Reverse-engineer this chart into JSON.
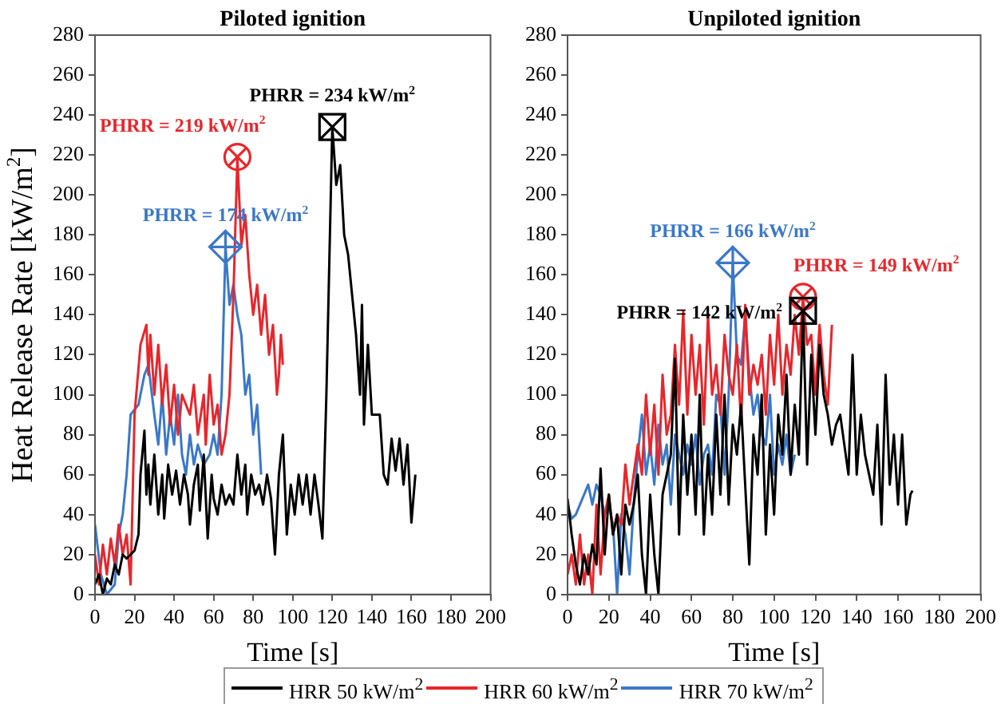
{
  "chart_data": [
    {
      "type": "line",
      "title": "Piloted ignition",
      "xlabel": "Time [s]",
      "ylabel": "Heat Release Rate [kW/m$^{2}$]",
      "xlim": [
        0,
        200
      ],
      "xticks": [
        0,
        20,
        40,
        60,
        80,
        100,
        120,
        140,
        160,
        180,
        200
      ],
      "ylim": [
        0,
        280
      ],
      "yticks": [
        0,
        20,
        40,
        60,
        80,
        100,
        120,
        140,
        160,
        180,
        200,
        220,
        240,
        260,
        280
      ],
      "grid": false,
      "legend": "bottom",
      "marker": "none",
      "series": [
        {
          "name": "HRR 50 kW/m$^{2}$",
          "color": "#000000",
          "x": [
            0,
            2,
            4,
            6,
            8,
            10,
            12,
            14,
            16,
            18,
            20,
            22,
            23,
            25,
            26,
            27,
            28,
            30,
            32,
            34,
            35,
            37,
            39,
            41,
            43,
            45,
            47,
            48,
            50,
            52,
            53,
            55,
            57,
            59,
            60,
            62,
            64,
            66,
            68,
            70,
            72,
            74,
            76,
            77,
            79,
            81,
            83,
            85,
            87,
            89,
            91,
            93,
            95,
            97,
            99,
            101,
            103,
            105,
            107,
            109,
            111,
            113,
            115,
            117,
            120,
            122,
            124,
            126,
            128,
            130,
            132,
            134,
            135,
            136,
            138,
            140,
            142,
            144,
            146,
            148,
            150,
            152,
            154,
            156,
            158,
            160,
            162
          ],
          "values": [
            5,
            10,
            0,
            8,
            5,
            15,
            10,
            20,
            18,
            20,
            22,
            30,
            60,
            82,
            50,
            65,
            45,
            70,
            40,
            60,
            38,
            65,
            50,
            62,
            45,
            60,
            50,
            35,
            55,
            65,
            42,
            70,
            28,
            60,
            48,
            40,
            55,
            45,
            50,
            45,
            70,
            50,
            65,
            40,
            60,
            50,
            55,
            45,
            60,
            48,
            20,
            60,
            80,
            30,
            55,
            40,
            60,
            45,
            60,
            40,
            60,
            45,
            28,
            100,
            234,
            205,
            215,
            180,
            170,
            150,
            130,
            100,
            145,
            85,
            125,
            90,
            90,
            90,
            60,
            55,
            78,
            62,
            78,
            55,
            75,
            36,
            60
          ]
        },
        {
          "name": "HRR 60 kW/m$^{2}$",
          "color": "#e8262b",
          "x": [
            0,
            2,
            4,
            6,
            8,
            10,
            12,
            14,
            16,
            18,
            20,
            23,
            26,
            27,
            28,
            30,
            32,
            34,
            36,
            38,
            40,
            42,
            44,
            48,
            50,
            52,
            55,
            56,
            58,
            60,
            62,
            64,
            66,
            68,
            70,
            72,
            74,
            76,
            78,
            80,
            82,
            84,
            86,
            88,
            90,
            92,
            93,
            94,
            95
          ],
          "values": [
            20,
            5,
            25,
            10,
            28,
            15,
            35,
            20,
            30,
            5,
            90,
            125,
            135,
            110,
            130,
            100,
            125,
            95,
            115,
            85,
            105,
            80,
            100,
            90,
            105,
            80,
            100,
            75,
            110,
            85,
            95,
            70,
            80,
            100,
            150,
            219,
            175,
            190,
            160,
            140,
            155,
            130,
            150,
            120,
            135,
            100,
            110,
            130,
            115
          ]
        },
        {
          "name": "HRR 70 kW/m$^{2}$",
          "color": "#3a78c9",
          "x": [
            0,
            3,
            6,
            10,
            12,
            14,
            16,
            18,
            22,
            25,
            27,
            30,
            32,
            34,
            36,
            38,
            40,
            42,
            44,
            46,
            48,
            50,
            52,
            55,
            58,
            60,
            62,
            64,
            66,
            68,
            70,
            72,
            74,
            76,
            78,
            80,
            82,
            84
          ],
          "values": [
            35,
            10,
            0,
            5,
            30,
            40,
            60,
            90,
            95,
            110,
            115,
            90,
            75,
            100,
            70,
            90,
            75,
            100,
            70,
            60,
            80,
            65,
            75,
            65,
            70,
            80,
            70,
            100,
            174,
            145,
            155,
            140,
            130,
            100,
            110,
            80,
            95,
            60
          ]
        }
      ],
      "annotations": [
        {
          "text": "PHRR = 219 kW/m$^{2}$",
          "x": 72,
          "y": 219
        },
        {
          "text": "PHRR = 174 kW/m$^{2}$",
          "x": 66,
          "y": 174
        },
        {
          "text": "PHRR = 234 kW/m$^{2}$",
          "x": 120,
          "y": 234
        }
      ]
    },
    {
      "type": "line",
      "title": "Unpiloted ignition",
      "xlabel": "Time [s]",
      "xlim": [
        0,
        200
      ],
      "xticks": [
        0,
        20,
        40,
        60,
        80,
        100,
        120,
        140,
        160,
        180,
        200
      ],
      "ylim": [
        0,
        280
      ],
      "yticks": [
        0,
        20,
        40,
        60,
        80,
        100,
        120,
        140,
        160,
        180,
        200,
        220,
        240,
        260,
        280
      ],
      "grid": false,
      "marker": "none",
      "series": [
        {
          "color": "#000000",
          "x": [
            0,
            2,
            4,
            6,
            8,
            10,
            12,
            14,
            16,
            18,
            20,
            22,
            24,
            26,
            28,
            30,
            32,
            34,
            36,
            38,
            40,
            42,
            44,
            46,
            48,
            50,
            52,
            54,
            56,
            58,
            60,
            62,
            64,
            66,
            68,
            70,
            72,
            74,
            76,
            78,
            80,
            82,
            84,
            86,
            88,
            90,
            92,
            94,
            96,
            98,
            100,
            102,
            104,
            106,
            108,
            110,
            112,
            114,
            116,
            118,
            120,
            122,
            124,
            126,
            128,
            130,
            132,
            134,
            136,
            138,
            140,
            142,
            144,
            146,
            148,
            150,
            152,
            154,
            156,
            158,
            160,
            162,
            164,
            166,
            167
          ],
          "values": [
            48,
            30,
            15,
            5,
            20,
            10,
            25,
            15,
            63,
            20,
            50,
            30,
            40,
            10,
            45,
            35,
            45,
            60,
            20,
            0,
            50,
            20,
            0,
            50,
            60,
            70,
            118,
            30,
            90,
            50,
            80,
            40,
            100,
            30,
            70,
            40,
            90,
            50,
            100,
            45,
            85,
            70,
            95,
            55,
            15,
            80,
            60,
            100,
            30,
            75,
            40,
            90,
            70,
            110,
            60,
            95,
            70,
            142,
            65,
            120,
            80,
            125,
            100,
            90,
            75,
            85,
            90,
            75,
            60,
            120,
            60,
            90,
            70,
            60,
            50,
            85,
            35,
            110,
            55,
            80,
            45,
            80,
            35,
            50,
            52
          ]
        },
        {
          "color": "#e8262b",
          "x": [
            0,
            2,
            4,
            6,
            8,
            10,
            12,
            14,
            16,
            18,
            20,
            22,
            24,
            26,
            28,
            30,
            32,
            34,
            36,
            38,
            40,
            42,
            44,
            46,
            48,
            50,
            52,
            54,
            56,
            58,
            60,
            62,
            64,
            66,
            68,
            70,
            72,
            74,
            76,
            78,
            80,
            82,
            84,
            86,
            88,
            90,
            92,
            94,
            96,
            98,
            100,
            102,
            104,
            106,
            108,
            110,
            112,
            114,
            116,
            118,
            120,
            122,
            124,
            126,
            128
          ],
          "values": [
            10,
            20,
            5,
            30,
            5,
            20,
            0,
            45,
            10,
            40,
            50,
            30,
            40,
            35,
            65,
            45,
            60,
            75,
            60,
            100,
            70,
            95,
            60,
            110,
            80,
            90,
            125,
            95,
            142,
            90,
            130,
            100,
            125,
            85,
            140,
            100,
            115,
            90,
            130,
            110,
            100,
            125,
            85,
            145,
            100,
            115,
            105,
            120,
            90,
            130,
            105,
            140,
            100,
            125,
            110,
            140,
            120,
            149,
            125,
            130,
            100,
            135,
            110,
            95,
            135
          ]
        },
        {
          "color": "#3a78c9",
          "x": [
            0,
            2,
            4,
            6,
            8,
            10,
            12,
            14,
            16,
            18,
            20,
            22,
            24,
            26,
            28,
            30,
            32,
            34,
            36,
            38,
            40,
            42,
            44,
            46,
            48,
            50,
            52,
            54,
            56,
            58,
            60,
            62,
            64,
            66,
            68,
            70,
            72,
            74,
            76,
            78,
            80,
            82,
            84,
            86,
            88,
            90,
            92,
            94,
            96,
            98,
            100,
            102,
            104,
            106,
            108,
            110
          ],
          "values": [
            45,
            38,
            40,
            45,
            50,
            55,
            45,
            55,
            50,
            40,
            45,
            35,
            0,
            40,
            30,
            10,
            45,
            70,
            90,
            60,
            75,
            55,
            85,
            65,
            75,
            45,
            80,
            70,
            60,
            75,
            65,
            80,
            55,
            70,
            75,
            60,
            100,
            95,
            60,
            100,
            166,
            120,
            115,
            140,
            110,
            90,
            100,
            80,
            75,
            100,
            60,
            75,
            65,
            80,
            60,
            70
          ]
        }
      ],
      "annotations": [
        {
          "text": "PHRR = 166 kW/m$^{2}$",
          "x": 80,
          "y": 166
        },
        {
          "text": "PHRR = 149 kW/m$^{2}$",
          "x": 114,
          "y": 149
        },
        {
          "text": "PHRR = 142 kW/m$^{2}$",
          "x": 114,
          "y": 142
        }
      ]
    }
  ]
}
